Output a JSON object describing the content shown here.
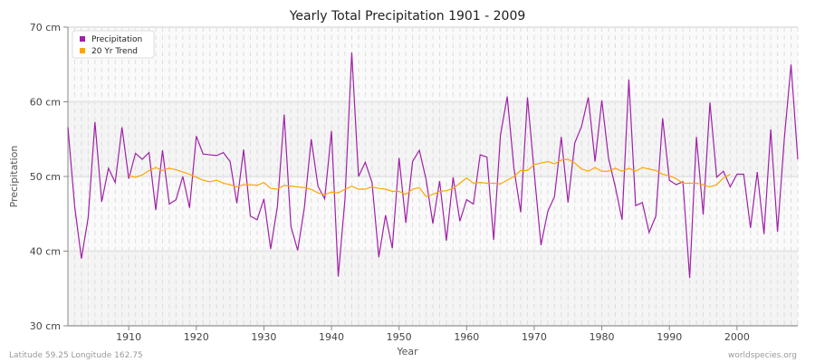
{
  "chart_data": {
    "type": "line",
    "title": "Yearly Total Precipitation 1901 - 2009",
    "xlabel": "Year",
    "ylabel": "Precipitation",
    "xlim": [
      1901,
      2009
    ],
    "ylim": [
      30,
      70
    ],
    "x_ticks": [
      1910,
      1920,
      1930,
      1940,
      1950,
      1960,
      1970,
      1980,
      1990,
      2000
    ],
    "y_ticks": [
      {
        "value": 30,
        "label": "30 cm"
      },
      {
        "value": 40,
        "label": "40 cm"
      },
      {
        "value": 50,
        "label": "50 cm"
      },
      {
        "value": 60,
        "label": "60 cm"
      },
      {
        "value": 70,
        "label": "70 cm"
      }
    ],
    "grid": true,
    "legend_position": "top-left",
    "series": [
      {
        "name": "Precipitation",
        "color": "#a020a8",
        "x_start": 1901,
        "values": [
          56.6,
          46,
          39,
          44.5,
          57.3,
          46.6,
          51.1,
          49.2,
          56.6,
          49.7,
          53.1,
          52.3,
          53.2,
          45.5,
          53.5,
          46.3,
          46.9,
          50,
          45.8,
          55.4,
          53,
          52.9,
          52.8,
          53.2,
          52,
          46.4,
          53.6,
          44.7,
          44.2,
          47,
          40.3,
          46,
          58.3,
          43.3,
          40.1,
          45.9,
          55,
          48.7,
          47,
          56.1,
          36.6,
          47,
          66.6,
          50,
          51.9,
          49.2,
          39.2,
          44.8,
          40.4,
          52.5,
          43.8,
          52,
          53.5,
          49.6,
          43.7,
          49.4,
          41.4,
          49.9,
          44,
          46.9,
          46.3,
          52.9,
          52.6,
          41.5,
          55.5,
          60.7,
          51.1,
          45.2,
          60.6,
          50.5,
          40.8,
          45.3,
          47.3,
          55.3,
          46.5,
          54.5,
          56.7,
          60.6,
          52,
          60.2,
          52.4,
          48.6,
          44.2,
          63,
          46.1,
          46.5,
          42.5,
          44.7,
          57.8,
          49.5,
          48.9,
          49.3,
          36.4,
          55.3,
          44.9,
          59.9,
          49.9,
          50.7,
          48.6,
          50.3,
          50.3,
          43.1,
          50.6,
          42.3,
          56.3,
          42.6,
          55,
          65,
          52.3
        ]
      },
      {
        "name": "20 Yr Trend",
        "color": "#ffa500",
        "x_start": 1910,
        "values": [
          50.1,
          49.9,
          50.2,
          50.8,
          51.2,
          50.8,
          51.1,
          50.9,
          50.6,
          50.3,
          49.9,
          49.5,
          49.3,
          49.5,
          49.1,
          48.9,
          48.6,
          48.9,
          48.9,
          48.8,
          49.2,
          48.4,
          48.3,
          48.8,
          48.7,
          48.6,
          48.5,
          48.3,
          47.8,
          47.6,
          47.9,
          47.8,
          48.3,
          48.7,
          48.3,
          48.3,
          48.6,
          48.4,
          48.3,
          48,
          48,
          47.6,
          48.3,
          48.5,
          47.3,
          47.6,
          48,
          48.1,
          48.4,
          49.1,
          49.8,
          49.1,
          49.2,
          49.1,
          49.1,
          49,
          49.5,
          50,
          50.8,
          50.8,
          51.6,
          51.8,
          52,
          51.7,
          52.2,
          52.3,
          51.8,
          51,
          50.7,
          51.2,
          50.7,
          50.7,
          51.1,
          50.7,
          51.1,
          50.7,
          51.2,
          51,
          50.8,
          50.3,
          50.1,
          49.7,
          49.1,
          49.1,
          49.1,
          48.9,
          48.6,
          48.9,
          49.8,
          50.3
        ]
      }
    ]
  },
  "footer": {
    "left": "Latitude 59.25 Longitude 162.75",
    "right": "worldspecies.org"
  }
}
